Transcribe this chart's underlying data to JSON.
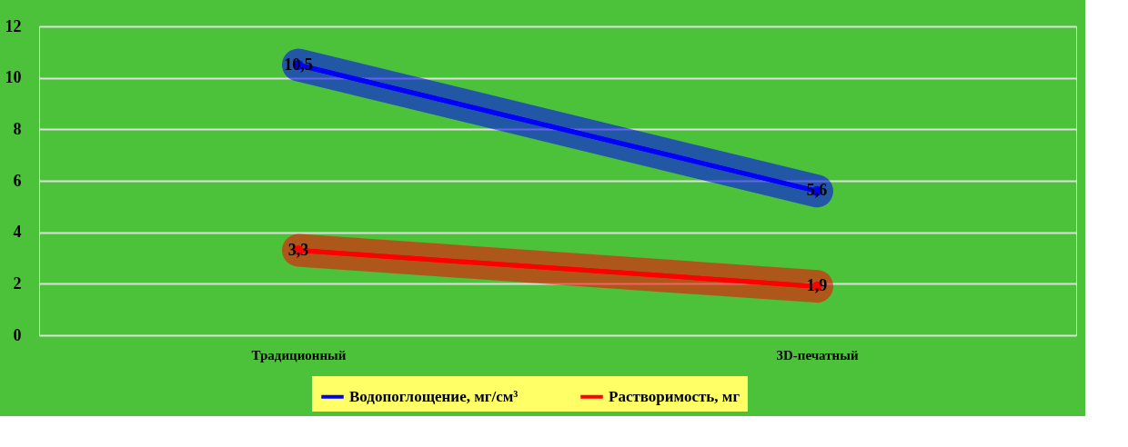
{
  "chart_data": {
    "type": "line",
    "categories": [
      "Традиционный",
      "3D-печатный"
    ],
    "series": [
      {
        "name": "Водопоглощение, мг/см³",
        "color": "#0000ff",
        "values": [
          10.5,
          5.6
        ],
        "value_labels": [
          "10,5",
          "5,6"
        ]
      },
      {
        "name": "Растворимость, мг",
        "color": "#ff0000",
        "values": [
          3.3,
          1.9
        ],
        "value_labels": [
          "3,3",
          "1,9"
        ]
      }
    ],
    "ylim": [
      0,
      12
    ],
    "yticks": [
      0,
      2,
      4,
      6,
      8,
      10,
      12
    ],
    "grid": "y",
    "legend": "bottom",
    "marker": "circle",
    "line_style": "solid"
  }
}
